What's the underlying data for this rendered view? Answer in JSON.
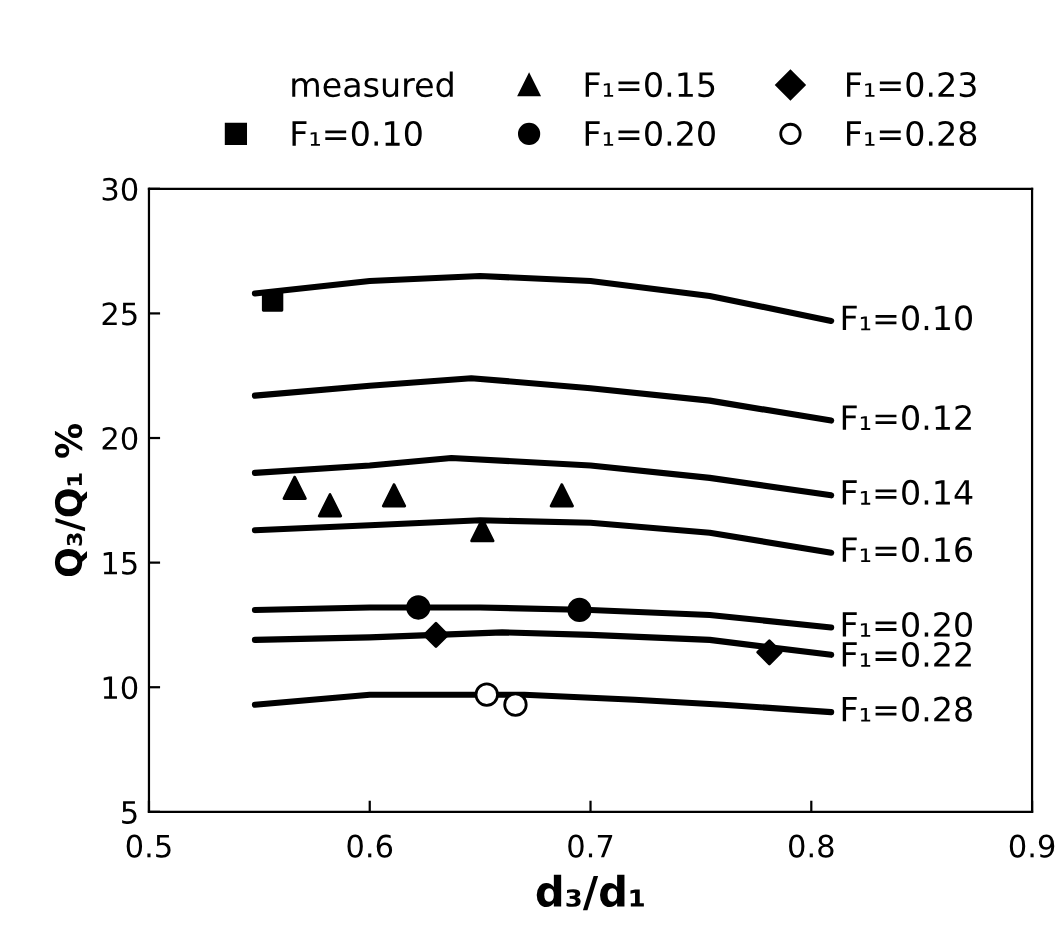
{
  "chart_data": {
    "type": "line",
    "xlabel": "d₃/d₁",
    "ylabel": "Q₃/Q₁ %",
    "legend_title": "measured",
    "xlim": [
      0.5,
      0.9
    ],
    "ylim": [
      5,
      30
    ],
    "xticks": [
      {
        "value": 0.5,
        "label": "0.5"
      },
      {
        "value": 0.6,
        "label": "0.6"
      },
      {
        "value": 0.7,
        "label": "0.7"
      },
      {
        "value": 0.8,
        "label": "0.8"
      },
      {
        "value": 0.9,
        "label": "0.9"
      }
    ],
    "yticks": [
      5,
      10,
      15,
      20,
      25,
      30
    ],
    "grid": false,
    "legend": "top",
    "line_style": "solid",
    "series": [
      {
        "color": "#000000",
        "marker": "none",
        "x": [
          0.548,
          0.6,
          0.65,
          0.7,
          0.754,
          0.809
        ],
        "values": [
          25.8,
          26.3,
          26.5,
          26.3,
          25.7,
          24.7
        ]
      },
      {
        "color": "#000000",
        "marker": "none",
        "x": [
          0.548,
          0.6,
          0.646,
          0.7,
          0.754,
          0.809
        ],
        "values": [
          21.7,
          22.1,
          22.4,
          22.0,
          21.5,
          20.7
        ]
      },
      {
        "color": "#000000",
        "marker": "none",
        "x": [
          0.548,
          0.6,
          0.637,
          0.7,
          0.754,
          0.809
        ],
        "values": [
          18.6,
          18.9,
          19.2,
          18.9,
          18.4,
          17.7
        ]
      },
      {
        "color": "#000000",
        "marker": "none",
        "x": [
          0.548,
          0.6,
          0.65,
          0.7,
          0.754,
          0.809
        ],
        "values": [
          16.3,
          16.5,
          16.7,
          16.6,
          16.2,
          15.4
        ]
      },
      {
        "color": "#000000",
        "marker": "none",
        "x": [
          0.548,
          0.6,
          0.65,
          0.7,
          0.754,
          0.809
        ],
        "values": [
          13.1,
          13.2,
          13.2,
          13.1,
          12.9,
          12.4
        ]
      },
      {
        "color": "#000000",
        "marker": "none",
        "x": [
          0.548,
          0.6,
          0.66,
          0.7,
          0.754,
          0.809
        ],
        "values": [
          11.9,
          12.0,
          12.2,
          12.1,
          11.9,
          11.3
        ]
      },
      {
        "color": "#000000",
        "marker": "none",
        "x": [
          0.548,
          0.6,
          0.67,
          0.72,
          0.76,
          0.809
        ],
        "values": [
          9.3,
          9.7,
          9.7,
          9.5,
          9.3,
          9.0
        ]
      },
      {
        "type": "scatter",
        "name": "F₁=0.10",
        "color": "#000000",
        "marker": "square",
        "x": [
          0.556
        ],
        "values": [
          25.5
        ]
      },
      {
        "type": "scatter",
        "name": "F₁=0.15",
        "color": "#000000",
        "marker": "triangle",
        "x": [
          0.566,
          0.582,
          0.611,
          0.651,
          0.687
        ],
        "values": [
          18.0,
          17.3,
          17.7,
          16.3,
          17.7
        ]
      },
      {
        "type": "scatter",
        "name": "F₁=0.20",
        "color": "#000000",
        "marker": "circle",
        "x": [
          0.622,
          0.695
        ],
        "values": [
          13.2,
          13.1
        ]
      },
      {
        "type": "scatter",
        "name": "F₁=0.23",
        "color": "#000000",
        "marker": "diamond",
        "x": [
          0.63,
          0.781
        ],
        "values": [
          12.1,
          11.4
        ]
      },
      {
        "type": "scatter",
        "name": "F₁=0.28",
        "color": "#ffffff",
        "marker": "circle",
        "x": [
          0.653,
          0.666
        ],
        "values": [
          9.7,
          9.3
        ]
      }
    ],
    "annotations": [
      "F₁=0.10",
      "F₁=0.12",
      "F₁=0.14",
      "F₁=0.16",
      "F₁=0.20",
      "F₁=0.22",
      "F₁=0.28"
    ]
  }
}
